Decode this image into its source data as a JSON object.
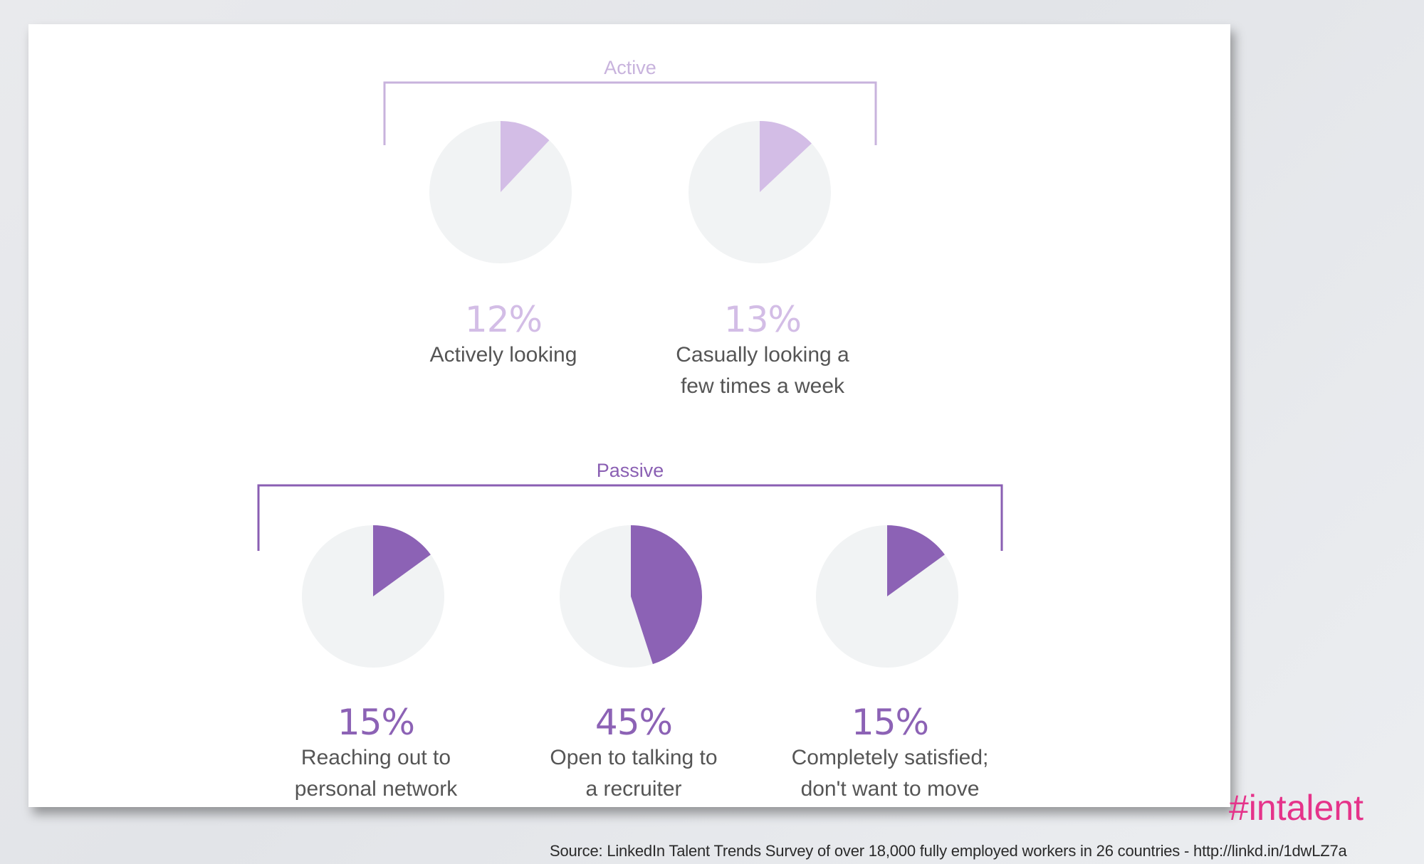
{
  "chart_data": {
    "type": "pie",
    "groups": [
      {
        "label": "Active",
        "color": "#d3bde6",
        "label_color": "#c8b3dd",
        "items": [
          {
            "value": 12,
            "value_label": "12%",
            "caption": [
              "Actively looking"
            ]
          },
          {
            "value": 13,
            "value_label": "13%",
            "caption": [
              "Casually looking a",
              "few times a week"
            ]
          }
        ]
      },
      {
        "label": "Passive",
        "color": "#8c62b5",
        "label_color": "#8a5fb3",
        "items": [
          {
            "value": 15,
            "value_label": "15%",
            "caption": [
              "Reaching out to",
              "personal network"
            ]
          },
          {
            "value": 45,
            "value_label": "45%",
            "caption": [
              "Open to talking to",
              "a recruiter"
            ]
          },
          {
            "value": 15,
            "value_label": "15%",
            "caption": [
              "Completely satisfied;",
              "don't want to move"
            ]
          }
        ]
      }
    ],
    "remainder_color": "#f1f3f4"
  },
  "hashtag": "#intalent",
  "source": "Source: LinkedIn Talent Trends Survey of over 18,000 fully employed workers in 26 countries - http://linkd.in/1dwLZ7a"
}
